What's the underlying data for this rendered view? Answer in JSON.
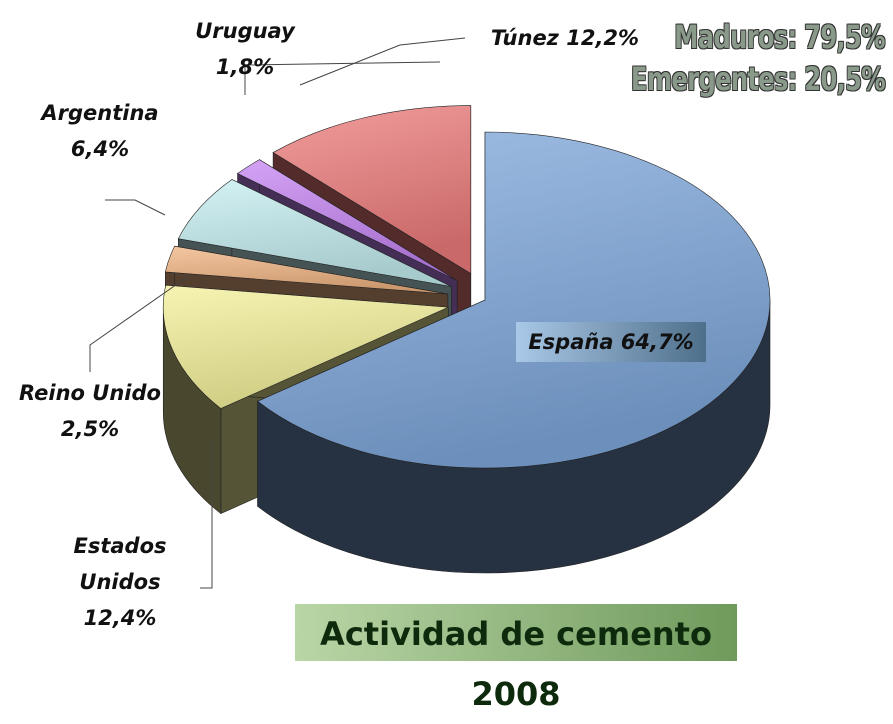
{
  "chart_data": {
    "type": "pie",
    "title": "Actividad de cemento 2008",
    "annotations": [
      "Maduros: 79,5%",
      "Emergentes: 20,5%"
    ],
    "categories": [
      "España",
      "Estados Unidos",
      "Reino Unido",
      "Argentina",
      "Uruguay",
      "Túnez"
    ],
    "values": [
      64.7,
      12.4,
      2.5,
      6.4,
      1.8,
      12.2
    ],
    "value_labels": [
      "64,7%",
      "12,4%",
      "2,5%",
      "6,4%",
      "1,8%",
      "12,2%"
    ],
    "colors": [
      "#7fa8dc",
      "#f4f09a",
      "#f0b482",
      "#c4eef0",
      "#c584f2",
      "#ee7c7c"
    ]
  }
}
